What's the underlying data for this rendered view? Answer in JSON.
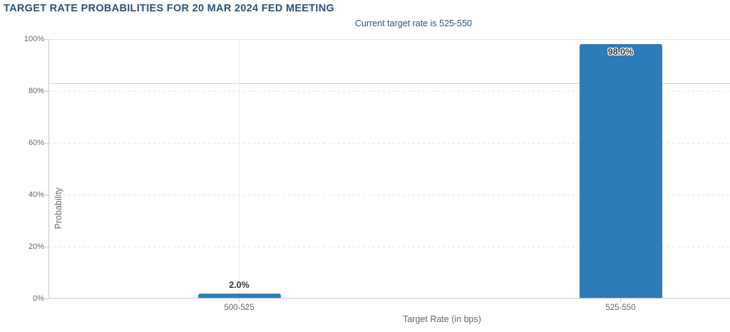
{
  "chart_data": {
    "type": "bar",
    "title": "TARGET RATE PROBABILITIES FOR 20 MAR 2024 FED MEETING",
    "subtitle": "Current target rate is 525-550",
    "xlabel": "Target Rate (in bps)",
    "ylabel": "Probability",
    "categories": [
      "500-525",
      "525-550"
    ],
    "values": [
      2.0,
      98.0
    ],
    "value_labels": [
      "2.0%",
      "98.0%"
    ],
    "ylim": [
      0,
      100
    ],
    "yticks": [
      0,
      20,
      40,
      60,
      80,
      100
    ],
    "ytick_labels": [
      "0%",
      "20%",
      "40%",
      "60%",
      "80%",
      "100%"
    ],
    "grid": true,
    "legend": false,
    "reference_line_pct": 83,
    "colors": {
      "bar": "#2e7cb7",
      "title": "#2b5179",
      "axis_text": "#666666",
      "data_label": "#333333",
      "gridline": "#e1e1e1",
      "axis_line": "#c9c9c9"
    }
  }
}
